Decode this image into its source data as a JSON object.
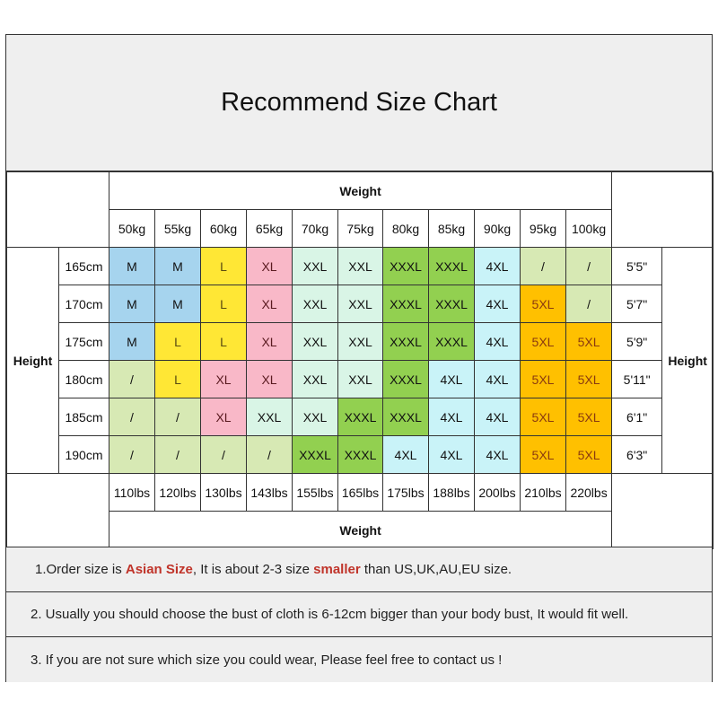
{
  "title": "Recommend Size Chart",
  "weight_label": "Weight",
  "height_label": "Height",
  "weights_kg": [
    "50kg",
    "55kg",
    "60kg",
    "65kg",
    "70kg",
    "75kg",
    "80kg",
    "85kg",
    "90kg",
    "95kg",
    "100kg"
  ],
  "weights_lbs": [
    "110lbs",
    "120lbs",
    "130lbs",
    "143lbs",
    "155lbs",
    "165lbs",
    "175lbs",
    "188lbs",
    "200lbs",
    "210lbs",
    "220lbs"
  ],
  "rows": [
    {
      "cm": "165cm",
      "ft": "5'5\"",
      "sizes": [
        "M",
        "M",
        "L",
        "XL",
        "XXL",
        "XXL",
        "XXXL",
        "XXXL",
        "4XL",
        "/",
        "/"
      ]
    },
    {
      "cm": "170cm",
      "ft": "5'7\"",
      "sizes": [
        "M",
        "M",
        "L",
        "XL",
        "XXL",
        "XXL",
        "XXXL",
        "XXXL",
        "4XL",
        "5XL",
        "/"
      ]
    },
    {
      "cm": "175cm",
      "ft": "5'9\"",
      "sizes": [
        "M",
        "L",
        "L",
        "XL",
        "XXL",
        "XXL",
        "XXXL",
        "XXXL",
        "4XL",
        "5XL",
        "5XL"
      ]
    },
    {
      "cm": "180cm",
      "ft": "5'11\"",
      "sizes": [
        "/",
        "L",
        "XL",
        "XL",
        "XXL",
        "XXL",
        "XXXL",
        "4XL",
        "4XL",
        "5XL",
        "5XL"
      ]
    },
    {
      "cm": "185cm",
      "ft": "6'1\"",
      "sizes": [
        "/",
        "/",
        "XL",
        "XXL",
        "XXL",
        "XXXL",
        "XXXL",
        "4XL",
        "4XL",
        "5XL",
        "5XL"
      ]
    },
    {
      "cm": "190cm",
      "ft": "6'3\"",
      "sizes": [
        "/",
        "/",
        "/",
        "/",
        "XXXL",
        "XXXL",
        "4XL",
        "4XL",
        "4XL",
        "5XL",
        "5XL"
      ]
    }
  ],
  "size_colors": {
    "M": "#a6d4ee",
    "L": "#ffe735",
    "XL": "#f9b8c8",
    "XXL": "#d9f5e6",
    "XXXL": "#92d050",
    "4XL": "#c9f3f8",
    "5XL": "#ffc000",
    "/": "#d7e9b4"
  },
  "size_text_colors": {
    "5XL": "#8a3a10",
    "L": "#5a4a10",
    "XL": "#5a1a20"
  },
  "notes": [
    {
      "parts": [
        {
          "text": "1.Order size is ",
          "em": false
        },
        {
          "text": "Asian Size",
          "em": true
        },
        {
          "text": ", It is about 2-3 size ",
          "em": false
        },
        {
          "text": "smaller",
          "em": true
        },
        {
          "text": " than US,UK,AU,EU size.",
          "em": false
        }
      ]
    },
    {
      "parts": [
        {
          "text": "2. Usually you should choose the bust of cloth is 6-12cm bigger than your body bust, It would fit well.",
          "em": false
        }
      ]
    },
    {
      "parts": [
        {
          "text": "3. If you are not sure which size you could wear, Please feel free to contact us !",
          "em": false
        }
      ]
    }
  ]
}
